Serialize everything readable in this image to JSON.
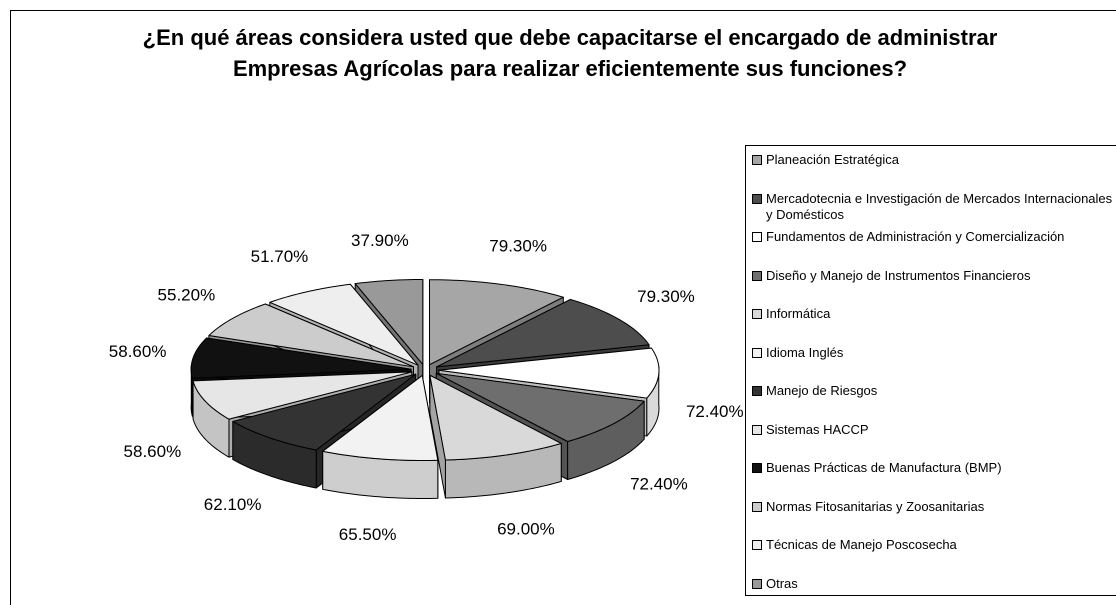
{
  "chart_data": {
    "type": "pie3d",
    "title": "¿En qué áreas considera usted que debe capacitarse el encargado de administrar Empresas Agrícolas para realizar eficientemente sus funciones?",
    "categories": [
      "Planeación Estratégica",
      "Mercadotecnia e Investigación de Mercados Internacionales y Domésticos",
      "Fundamentos de Administración y Comercialización",
      "Diseño y Manejo de Instrumentos Financieros",
      "Informática",
      "Idioma Inglés",
      "Manejo de Riesgos",
      "Sistemas HACCP",
      "Buenas Prácticas de Manufactura (BMP)",
      "Normas Fitosanitarias y Zoosanitarias",
      "Técnicas de Manejo Poscosecha",
      "Otras"
    ],
    "values": [
      79.3,
      79.3,
      72.4,
      72.4,
      69.0,
      65.5,
      62.1,
      58.6,
      58.6,
      55.2,
      51.7,
      37.9
    ],
    "value_labels": [
      "79.30%",
      "79.30%",
      "72.40%",
      "72.40%",
      "69.00%",
      "65.50%",
      "62.10%",
      "58.60%",
      "58.60%",
      "55.20%",
      "51.70%",
      "37.90%"
    ],
    "colors": [
      "#a6a6a6",
      "#4d4d4d",
      "#ffffff",
      "#6e6e6e",
      "#d9d9d9",
      "#f2f2f2",
      "#333333",
      "#e6e6e6",
      "#111111",
      "#cccccc",
      "#eeeeee",
      "#999999"
    ],
    "legend": "right"
  }
}
